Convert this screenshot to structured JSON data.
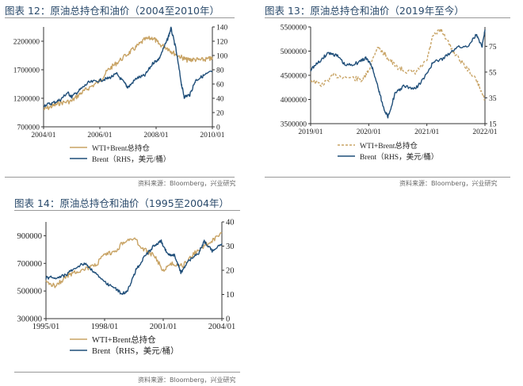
{
  "colors": {
    "wti": "#c8a364",
    "brent": "#1f4e79",
    "axis": "#333333",
    "title": "#2a4a6b"
  },
  "chart_data": [
    {
      "id": "fig12",
      "type": "line",
      "title": "图表 12：原油总持仓和油价（2004至2010年）",
      "source": "资料来源：Bloomberg，兴业研究",
      "xlabels": [
        "2004/01",
        "2006/01",
        "2008/01",
        "2010/01"
      ],
      "xrange": [
        2004.0,
        2010.0
      ],
      "yleft": {
        "ticks": [
          700000,
          1200000,
          1700000,
          2200000
        ],
        "labels": [
          "700000",
          "1200000",
          "1700000",
          "2200000"
        ],
        "range": [
          700000,
          2450000
        ]
      },
      "yright": {
        "ticks": [
          0,
          20,
          40,
          60,
          80,
          100,
          120,
          140
        ],
        "labels": [
          "0",
          "20",
          "40",
          "60",
          "80",
          "100",
          "120",
          "140"
        ],
        "range": [
          0,
          140
        ]
      },
      "series": [
        {
          "name": "WTI+Brent总持仓",
          "axis": "left",
          "style": "solid",
          "x": [
            2004.0,
            2004.3,
            2004.6,
            2005.0,
            2005.3,
            2005.6,
            2006.0,
            2006.3,
            2006.6,
            2007.0,
            2007.3,
            2007.6,
            2007.9,
            2008.1,
            2008.4,
            2008.6,
            2008.9,
            2009.1,
            2009.3,
            2009.6,
            2009.9,
            2010.0
          ],
          "y": [
            1000000,
            1060000,
            1120000,
            1150000,
            1280000,
            1380000,
            1500000,
            1700000,
            1820000,
            1980000,
            2100000,
            2230000,
            2260000,
            2150000,
            2080000,
            2000000,
            1920000,
            1870000,
            1880000,
            1870000,
            1890000,
            1900000
          ]
        },
        {
          "name": "Brent（RHS，美元/桶）",
          "axis": "right",
          "style": "solid",
          "x": [
            2004.0,
            2004.3,
            2004.6,
            2004.85,
            2005.0,
            2005.3,
            2005.6,
            2006.0,
            2006.3,
            2006.6,
            2006.9,
            2007.0,
            2007.3,
            2007.6,
            2007.9,
            2008.1,
            2008.4,
            2008.53,
            2008.7,
            2008.9,
            2009.0,
            2009.2,
            2009.4,
            2009.7,
            2010.0
          ],
          "y": [
            30,
            33,
            38,
            48,
            42,
            52,
            62,
            65,
            68,
            74,
            60,
            55,
            68,
            72,
            90,
            95,
            122,
            138,
            110,
            60,
            42,
            45,
            65,
            72,
            78
          ]
        }
      ]
    },
    {
      "id": "fig13",
      "type": "line",
      "title": "图表 13：原油总持仓和油价（2019年至今）",
      "source": "资料来源：Bloomberg，兴业研究",
      "xlabels": [
        "2019/01",
        "2020/01",
        "2021/01",
        "2022/01"
      ],
      "xrange": [
        2019.0,
        2022.0
      ],
      "yleft": {
        "ticks": [
          3500000,
          4000000,
          4500000,
          5000000,
          5500000
        ],
        "labels": [
          "3500000",
          "4000000",
          "4500000",
          "5000000",
          "5500000"
        ],
        "range": [
          3500000,
          5500000
        ]
      },
      "yright": {
        "ticks": [
          15,
          35,
          55,
          75
        ],
        "labels": [
          "15",
          "35",
          "55",
          "75"
        ],
        "range": [
          15,
          90
        ]
      },
      "series": [
        {
          "name": "WTI+Brent总持仓",
          "axis": "left",
          "style": "dashed",
          "x": [
            2019.0,
            2019.2,
            2019.4,
            2019.7,
            2019.9,
            2020.0,
            2020.15,
            2020.3,
            2020.45,
            2020.6,
            2020.8,
            2021.0,
            2021.1,
            2021.25,
            2021.45,
            2021.65,
            2021.85,
            2022.0
          ],
          "y": [
            4400000,
            4300000,
            4500000,
            4450000,
            4400000,
            4600000,
            5100000,
            4900000,
            4700000,
            4600000,
            4550000,
            4800000,
            5300000,
            5450000,
            5000000,
            4700000,
            4400000,
            4000000
          ]
        },
        {
          "name": "Brent（RHS，美元/桶）",
          "axis": "right",
          "style": "solid",
          "x": [
            2019.0,
            2019.15,
            2019.3,
            2019.45,
            2019.6,
            2019.8,
            2019.95,
            2020.05,
            2020.15,
            2020.25,
            2020.33,
            2020.45,
            2020.6,
            2020.8,
            2020.95,
            2021.1,
            2021.3,
            2021.5,
            2021.7,
            2021.85,
            2021.95,
            2022.0
          ],
          "y": [
            57,
            63,
            70,
            68,
            60,
            62,
            66,
            60,
            45,
            28,
            20,
            38,
            44,
            42,
            50,
            62,
            66,
            74,
            75,
            84,
            75,
            88
          ]
        }
      ]
    },
    {
      "id": "fig14",
      "type": "line",
      "title": "图表 14：原油总持仓和油价（1995至2004年）",
      "source": "资料来源：Bloomberg，兴业研究",
      "xlabels": [
        "1995/01",
        "1998/01",
        "2001/01",
        "2004/01"
      ],
      "xrange": [
        1995.0,
        2004.0
      ],
      "yleft": {
        "ticks": [
          300000,
          500000,
          700000,
          900000
        ],
        "labels": [
          "300000",
          "500000",
          "700000",
          "900000"
        ],
        "range": [
          300000,
          1000000
        ]
      },
      "yright": {
        "ticks": [
          0,
          10,
          20,
          30,
          40
        ],
        "labels": [
          "0",
          "10",
          "20",
          "30",
          "40"
        ],
        "range": [
          0,
          40
        ]
      },
      "series": [
        {
          "name": "WTI+Brent总持仓",
          "axis": "left",
          "style": "solid",
          "x": [
            1995.0,
            1995.5,
            1996.0,
            1996.5,
            1997.0,
            1997.5,
            1998.0,
            1998.5,
            1999.0,
            1999.5,
            2000.0,
            2000.5,
            2001.0,
            2001.5,
            2002.0,
            2002.5,
            2003.0,
            2003.5,
            2004.0
          ],
          "y": [
            560000,
            540000,
            600000,
            640000,
            660000,
            680000,
            760000,
            780000,
            860000,
            880000,
            800000,
            760000,
            650000,
            700000,
            680000,
            760000,
            820000,
            860000,
            920000
          ]
        },
        {
          "name": "Brent（RHS，美元/桶）",
          "axis": "right",
          "style": "solid",
          "x": [
            1995.0,
            1995.5,
            1996.0,
            1996.5,
            1997.0,
            1997.5,
            1998.0,
            1998.5,
            1998.9,
            1999.2,
            1999.6,
            2000.0,
            2000.5,
            2000.9,
            2001.2,
            2001.6,
            2001.9,
            2002.3,
            2002.8,
            2003.1,
            2003.5,
            2004.0
          ],
          "y": [
            17,
            17,
            18,
            21,
            23,
            19,
            15,
            13,
            10,
            12,
            20,
            25,
            30,
            32,
            27,
            26,
            19,
            24,
            27,
            32,
            28,
            31
          ]
        }
      ]
    }
  ],
  "legend": {
    "wti": "WTI+Brent总持仓",
    "brent": "Brent（RHS，美元/桶）"
  }
}
